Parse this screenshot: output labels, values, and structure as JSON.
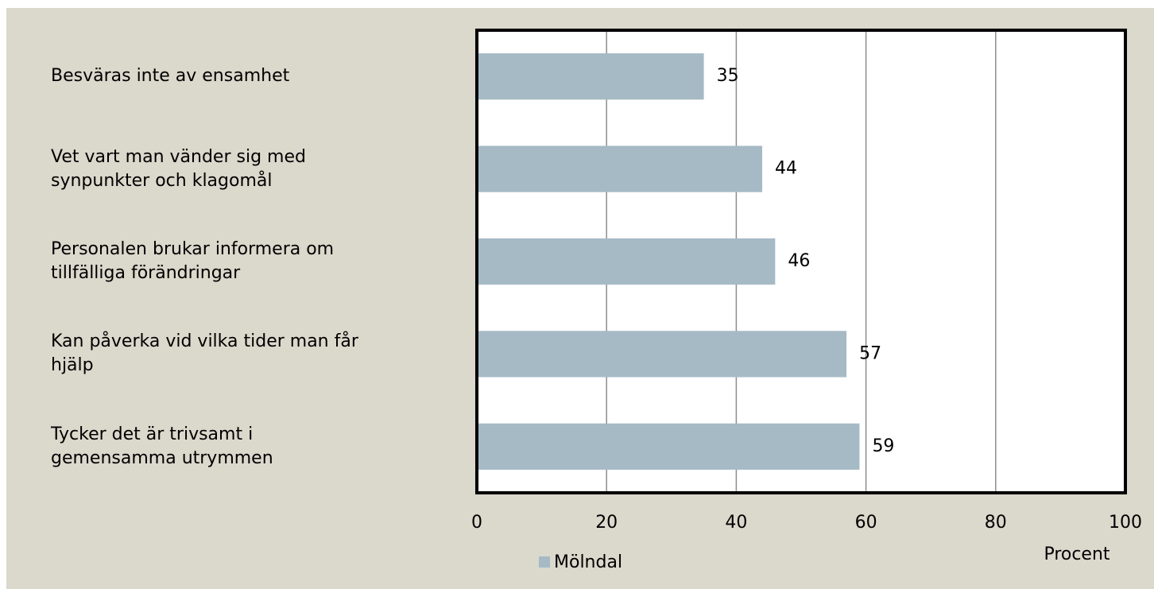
{
  "chart_data": {
    "type": "bar",
    "orientation": "horizontal",
    "categories": [
      "Besväras inte av ensamhet",
      "Vet vart man vänder sig med\nsynpunkter och klagomål",
      "Personalen brukar informera om\ntillfälliga förändringar",
      "Kan påverka vid vilka tider man får\nhjälp",
      "Tycker det är trivsamt i\ngemensamma utrymmen"
    ],
    "series": [
      {
        "name": "Mölndal",
        "color": "#a6bac5",
        "values": [
          35,
          44,
          46,
          57,
          59
        ]
      }
    ],
    "xlim": [
      0,
      100
    ],
    "xticks": [
      0,
      20,
      40,
      60,
      80,
      100
    ],
    "xlabel": "Procent",
    "grid": true
  }
}
